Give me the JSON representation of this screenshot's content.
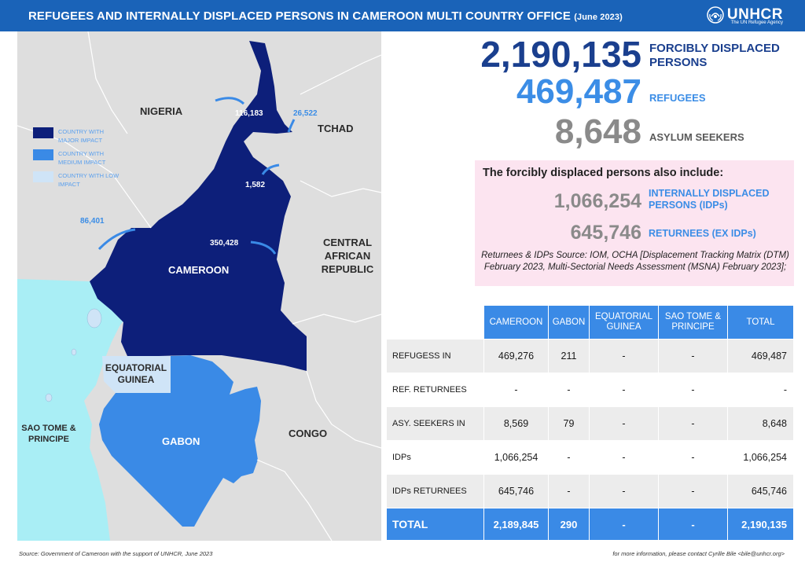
{
  "header": {
    "title": "REFUGEES AND INTERNALLY DISPLACED PERSONS IN CAMEROON MULTI COUNTRY OFFICE",
    "date": "(June 2023)",
    "logo_name": "UNHCR",
    "logo_tagline": "The UN Refugee Agency"
  },
  "map": {
    "countries": {
      "nigeria": "NIGERIA",
      "tchad": "TCHAD",
      "car": "CENTRAL AFRICAN REPUBLIC",
      "cameroon": "CAMEROON",
      "eq_guinea": "EQUATORIAL GUINEA",
      "gabon": "GABON",
      "congo": "CONGO",
      "sao_tome": "SAO TOME & PRINCIPE"
    },
    "flows": {
      "far_north": "116,183",
      "tchad": "26,522",
      "north": "1,582",
      "west": "86,401",
      "east": "350,428"
    },
    "legend": [
      {
        "label": "COUNTRY WITH MAJOR IMPACT",
        "color": "#0d1f7a"
      },
      {
        "label": "COUNTRY WITH MEDIUM IMPACT",
        "color": "#3a8ae6"
      },
      {
        "label": "COUNTRY WITH LOW IMPACT",
        "color": "#cfe4f7"
      }
    ],
    "colors": {
      "major": "#0d1f7a",
      "medium": "#3a8ae6",
      "low": "#cfe4f7",
      "sea": "#a9eef5",
      "land": "#dedede"
    }
  },
  "stats": {
    "forcibly_displaced": {
      "value": "2,190,135",
      "label": "FORCIBLY DISPLACED PERSONS"
    },
    "refugees": {
      "value": "469,487",
      "label": "REFUGEES"
    },
    "asylum": {
      "value": "8,648",
      "label": "ASYLUM SEEKERS"
    }
  },
  "also": {
    "heading": "The forcibly displaced persons also include:",
    "idps": {
      "value": "1,066,254",
      "label": "INTERNALLY DISPLACED PERSONS (IDPs)"
    },
    "returnees": {
      "value": "645,746",
      "label": "RETURNEES (EX IDPs)"
    },
    "source": "Returnees & IDPs Source: IOM, OCHA [Displacement Tracking Matrix (DTM) February 2023, Multi-Sectorial Needs Assessment (MSNA) February 2023];"
  },
  "table": {
    "columns": [
      "CAMEROON",
      "GABON",
      "EQUATORIAL GUINEA",
      "SAO TOME & PRINCIPE",
      "TOTAL"
    ],
    "rows": [
      {
        "label": "REFUGESS IN",
        "values": [
          "469,276",
          "211",
          "-",
          "-",
          "469,487"
        ]
      },
      {
        "label": "REF. RETURNEES",
        "values": [
          "-",
          "-",
          "-",
          "-",
          "-"
        ]
      },
      {
        "label": "ASY. SEEKERS IN",
        "values": [
          "8,569",
          "79",
          "-",
          "-",
          "8,648"
        ]
      },
      {
        "label": "IDPs",
        "values": [
          "1,066,254",
          "-",
          "-",
          "-",
          "1,066,254"
        ]
      },
      {
        "label": "IDPs RETURNEES",
        "values": [
          "645,746",
          "-",
          "-",
          "-",
          "645,746"
        ]
      }
    ],
    "total": {
      "label": "TOTAL",
      "values": [
        "2,189,845",
        "290",
        "-",
        "-",
        "2,190,135"
      ]
    }
  },
  "footer": {
    "source": "Source: Government of Cameroon with the support of UNHCR, June 2023",
    "contact": "for more information, please contact Cyrille Bile <bile@unhcr.org>"
  }
}
